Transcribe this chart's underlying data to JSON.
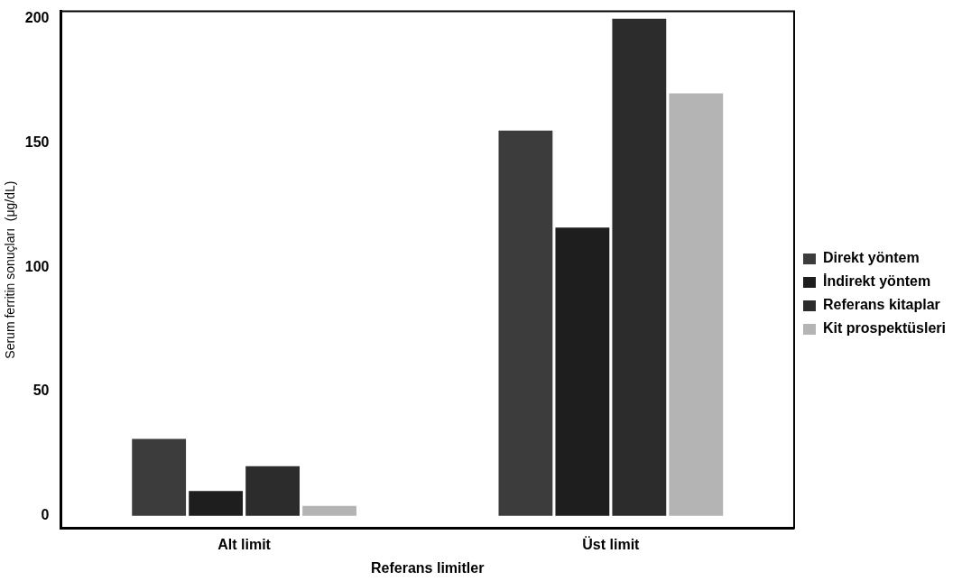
{
  "chart_data": {
    "type": "bar",
    "xlabel": "Referans limitler",
    "ylabel": "Serum ferritin sonuçları  (μg/dL)",
    "categories": [
      "Alt limit",
      "Üst limit"
    ],
    "series": [
      {
        "name": "Direkt yöntem",
        "color": "#3c3c3c",
        "values": [
          31,
          155
        ]
      },
      {
        "name": "İndirekt yöntem",
        "color": "#1e1e1e",
        "values": [
          10,
          116
        ]
      },
      {
        "name": "Referans kitaplar",
        "color": "#2c2c2c",
        "values": [
          20,
          200
        ]
      },
      {
        "name": "Kit prospektüsleri",
        "color": "#b4b4b4",
        "values": [
          4,
          170
        ]
      }
    ],
    "ylim": [
      -5,
      203
    ],
    "yticks": [
      0,
      50,
      100,
      150,
      200
    ],
    "grid": false,
    "legend": "right"
  }
}
